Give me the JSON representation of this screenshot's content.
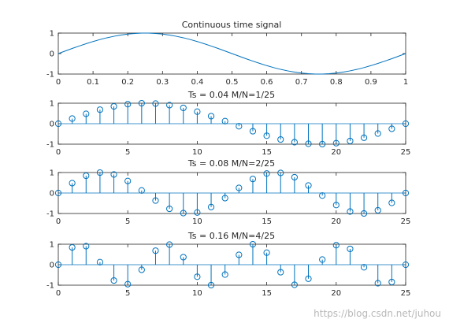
{
  "colors": {
    "series": "#0072bd",
    "axes": "#262626",
    "background": "#ffffff",
    "watermark": "#b8b8b8"
  },
  "watermark": "https://blog.csdn.net/juhou",
  "chart_data": [
    {
      "type": "line",
      "title": "Continuous time signal",
      "xlabel": "",
      "ylabel": "",
      "xlim": [
        0,
        1
      ],
      "ylim": [
        -1,
        1
      ],
      "xticks": [
        0,
        0.1,
        0.2,
        0.3,
        0.4,
        0.5,
        0.6,
        0.7,
        0.8,
        0.9,
        1
      ],
      "xtick_labels": [
        "0",
        "0.1",
        "0.2",
        "0.3",
        "0.4",
        "0.5",
        "0.6",
        "0.7",
        "0.8",
        "0.9",
        "1"
      ],
      "yticks": [
        -1,
        0,
        1
      ],
      "ytick_labels": [
        "-1",
        "0",
        "1"
      ],
      "grid": false,
      "series": [
        {
          "x": [
            0,
            0.02,
            0.04,
            0.06,
            0.08,
            0.1,
            0.12,
            0.14,
            0.16,
            0.18,
            0.2,
            0.22,
            0.24,
            0.26,
            0.28,
            0.3,
            0.32,
            0.34,
            0.36,
            0.38,
            0.4,
            0.42,
            0.44,
            0.46,
            0.48,
            0.5,
            0.52,
            0.54,
            0.56,
            0.58,
            0.6,
            0.62,
            0.64,
            0.66,
            0.68,
            0.7,
            0.72,
            0.74,
            0.76,
            0.78,
            0.8,
            0.82,
            0.84,
            0.86,
            0.88,
            0.9,
            0.92,
            0.94,
            0.96,
            0.98,
            1
          ],
          "y": [
            0,
            0.125,
            0.249,
            0.368,
            0.482,
            0.588,
            0.685,
            0.771,
            0.844,
            0.905,
            0.951,
            0.982,
            0.998,
            0.998,
            0.982,
            0.951,
            0.905,
            0.844,
            0.771,
            0.685,
            0.588,
            0.482,
            0.368,
            0.249,
            0.125,
            0,
            -0.125,
            -0.249,
            -0.368,
            -0.482,
            -0.588,
            -0.685,
            -0.771,
            -0.844,
            -0.905,
            -0.951,
            -0.982,
            -0.998,
            -0.998,
            -0.982,
            -0.951,
            -0.905,
            -0.844,
            -0.771,
            -0.685,
            -0.588,
            -0.482,
            -0.368,
            -0.249,
            -0.125,
            0
          ]
        }
      ]
    },
    {
      "type": "stem",
      "title": "Ts = 0.04 M/N=1/25",
      "xlabel": "",
      "ylabel": "",
      "xlim": [
        0,
        25
      ],
      "ylim": [
        -1,
        1
      ],
      "xticks": [
        0,
        5,
        10,
        15,
        20,
        25
      ],
      "xtick_labels": [
        "0",
        "5",
        "10",
        "15",
        "20",
        "25"
      ],
      "yticks": [
        -1,
        0,
        1
      ],
      "ytick_labels": [
        "-1",
        "0",
        "1"
      ],
      "grid": false,
      "series": [
        {
          "x": [
            0,
            1,
            2,
            3,
            4,
            5,
            6,
            7,
            8,
            9,
            10,
            11,
            12,
            13,
            14,
            15,
            16,
            17,
            18,
            19,
            20,
            21,
            22,
            23,
            24,
            25
          ],
          "y": [
            0,
            0.249,
            0.482,
            0.685,
            0.844,
            0.951,
            0.998,
            0.982,
            0.905,
            0.771,
            0.588,
            0.368,
            0.125,
            -0.125,
            -0.368,
            -0.588,
            -0.771,
            -0.905,
            -0.982,
            -0.998,
            -0.951,
            -0.844,
            -0.685,
            -0.482,
            -0.249,
            0
          ]
        }
      ]
    },
    {
      "type": "stem",
      "title": "Ts = 0.08 M/N=2/25",
      "xlabel": "",
      "ylabel": "",
      "xlim": [
        0,
        25
      ],
      "ylim": [
        -1,
        1
      ],
      "xticks": [
        0,
        5,
        10,
        15,
        20,
        25
      ],
      "xtick_labels": [
        "0",
        "5",
        "10",
        "15",
        "20",
        "25"
      ],
      "yticks": [
        -1,
        0,
        1
      ],
      "ytick_labels": [
        "-1",
        "0",
        "1"
      ],
      "grid": false,
      "series": [
        {
          "x": [
            0,
            1,
            2,
            3,
            4,
            5,
            6,
            7,
            8,
            9,
            10,
            11,
            12,
            13,
            14,
            15,
            16,
            17,
            18,
            19,
            20,
            21,
            22,
            23,
            24,
            25
          ],
          "y": [
            0,
            0.482,
            0.844,
            0.998,
            0.905,
            0.588,
            0.125,
            -0.368,
            -0.771,
            -0.982,
            -0.951,
            -0.685,
            -0.249,
            0.249,
            0.685,
            0.951,
            0.982,
            0.771,
            0.368,
            -0.125,
            -0.588,
            -0.905,
            -0.998,
            -0.844,
            -0.482,
            0
          ]
        }
      ]
    },
    {
      "type": "stem",
      "title": "Ts = 0.16 M/N=4/25",
      "xlabel": "",
      "ylabel": "",
      "xlim": [
        0,
        25
      ],
      "ylim": [
        -1,
        1
      ],
      "xticks": [
        0,
        5,
        10,
        15,
        20,
        25
      ],
      "xtick_labels": [
        "0",
        "5",
        "10",
        "15",
        "20",
        "25"
      ],
      "yticks": [
        -1,
        0,
        1
      ],
      "ytick_labels": [
        "-1",
        "0",
        "1"
      ],
      "grid": false,
      "series": [
        {
          "x": [
            0,
            1,
            2,
            3,
            4,
            5,
            6,
            7,
            8,
            9,
            10,
            11,
            12,
            13,
            14,
            15,
            16,
            17,
            18,
            19,
            20,
            21,
            22,
            23,
            24,
            25
          ],
          "y": [
            0,
            0.844,
            0.905,
            0.125,
            -0.771,
            -0.951,
            -0.249,
            0.685,
            0.982,
            0.368,
            -0.588,
            -0.998,
            -0.482,
            0.482,
            0.998,
            0.588,
            -0.368,
            -0.982,
            -0.685,
            0.249,
            0.951,
            0.771,
            -0.125,
            -0.905,
            -0.844,
            0
          ]
        }
      ]
    }
  ]
}
